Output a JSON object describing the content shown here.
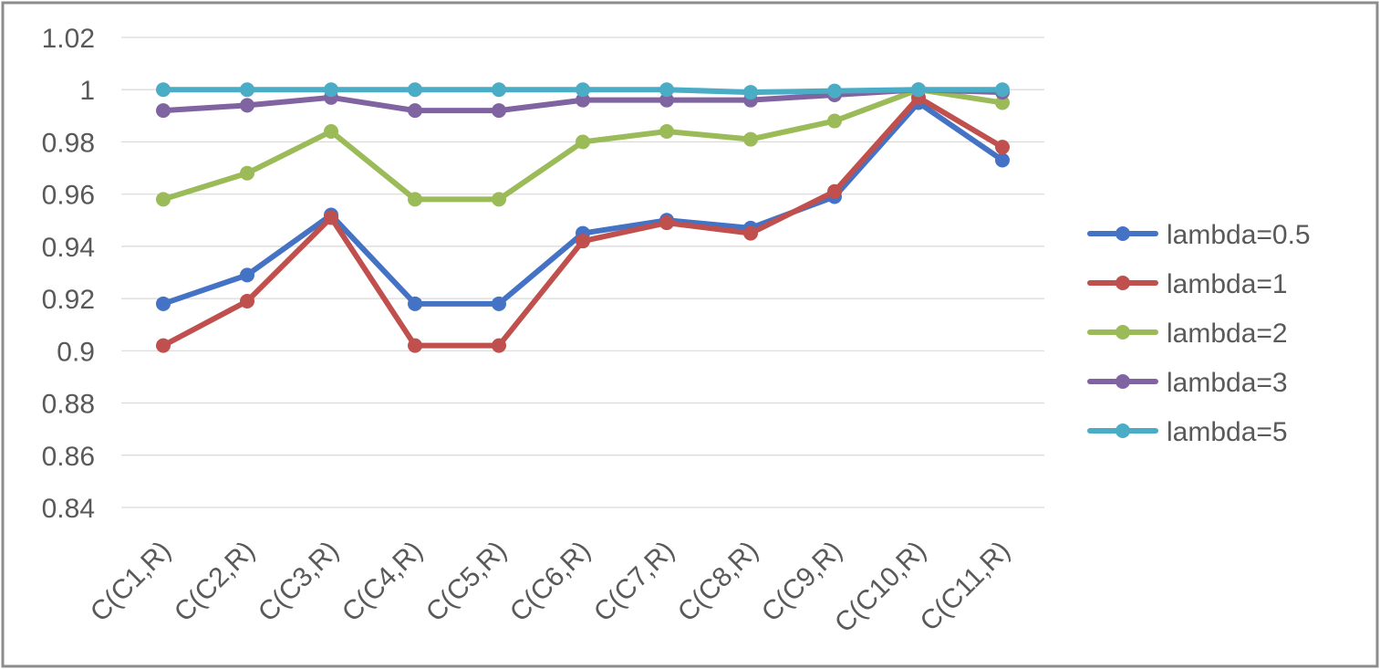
{
  "chart_data": {
    "type": "line",
    "title": "",
    "xlabel": "",
    "ylabel": "",
    "categories": [
      "C(C1,R)",
      "C(C2,R)",
      "C(C3,R)",
      "C(C4,R)",
      "C(C5,R)",
      "C(C6,R)",
      "C(C7,R)",
      "C(C8,R)",
      "C(C9,R)",
      "C(C10,R)",
      "C(C11,R)"
    ],
    "ylim": [
      0.84,
      1.02
    ],
    "yticks": [
      "0.84",
      "0.86",
      "0.88",
      "0.9",
      "0.92",
      "0.94",
      "0.96",
      "0.98",
      "1",
      "1.02"
    ],
    "grid": true,
    "legend_position": "right",
    "series": [
      {
        "name": "lambda=0.5",
        "color": "#4472c4",
        "values": [
          0.918,
          0.929,
          0.952,
          0.918,
          0.918,
          0.945,
          0.95,
          0.947,
          0.959,
          0.995,
          0.973
        ]
      },
      {
        "name": "lambda=1",
        "color": "#c0504d",
        "values": [
          0.902,
          0.919,
          0.951,
          0.902,
          0.902,
          0.942,
          0.949,
          0.945,
          0.961,
          0.997,
          0.978
        ]
      },
      {
        "name": "lambda=2",
        "color": "#9bbb59",
        "values": [
          0.958,
          0.968,
          0.984,
          0.958,
          0.958,
          0.98,
          0.984,
          0.981,
          0.988,
          1.0,
          0.995
        ]
      },
      {
        "name": "lambda=3",
        "color": "#8064a2",
        "values": [
          0.992,
          0.994,
          0.997,
          0.992,
          0.992,
          0.996,
          0.996,
          0.996,
          0.998,
          1.0,
          0.999
        ]
      },
      {
        "name": "lambda=5",
        "color": "#4bacc6",
        "values": [
          1.0,
          1.0,
          1.0,
          1.0,
          1.0,
          1.0,
          1.0,
          0.999,
          0.9995,
          1.0,
          1.0
        ]
      }
    ]
  }
}
